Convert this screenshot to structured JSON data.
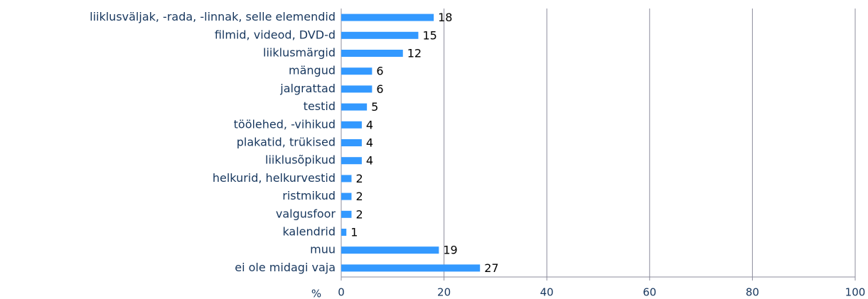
{
  "chart_data": {
    "type": "bar",
    "orientation": "horizontal",
    "categories": [
      "liiklusväljak, -rada, -linnak, selle elemendid",
      "filmid, videod, DVD-d",
      "liiklusmärgid",
      "mängud",
      "jalgrattad",
      "testid",
      "töölehed, -vihikud",
      "plakatid, trükised",
      "liiklusõpikud",
      "helkurid, helkurvestid",
      "ristmikud",
      "valgusfoor",
      "kalendrid",
      "muu",
      "ei ole midagi vaja"
    ],
    "values": [
      18,
      15,
      12,
      6,
      6,
      5,
      4,
      4,
      4,
      2,
      2,
      2,
      1,
      19,
      27
    ],
    "color": "#3399ff",
    "x_label": "%",
    "xlim": [
      0,
      100
    ],
    "xticks": [
      0,
      20,
      40,
      60,
      80,
      100
    ],
    "grid": true
  }
}
